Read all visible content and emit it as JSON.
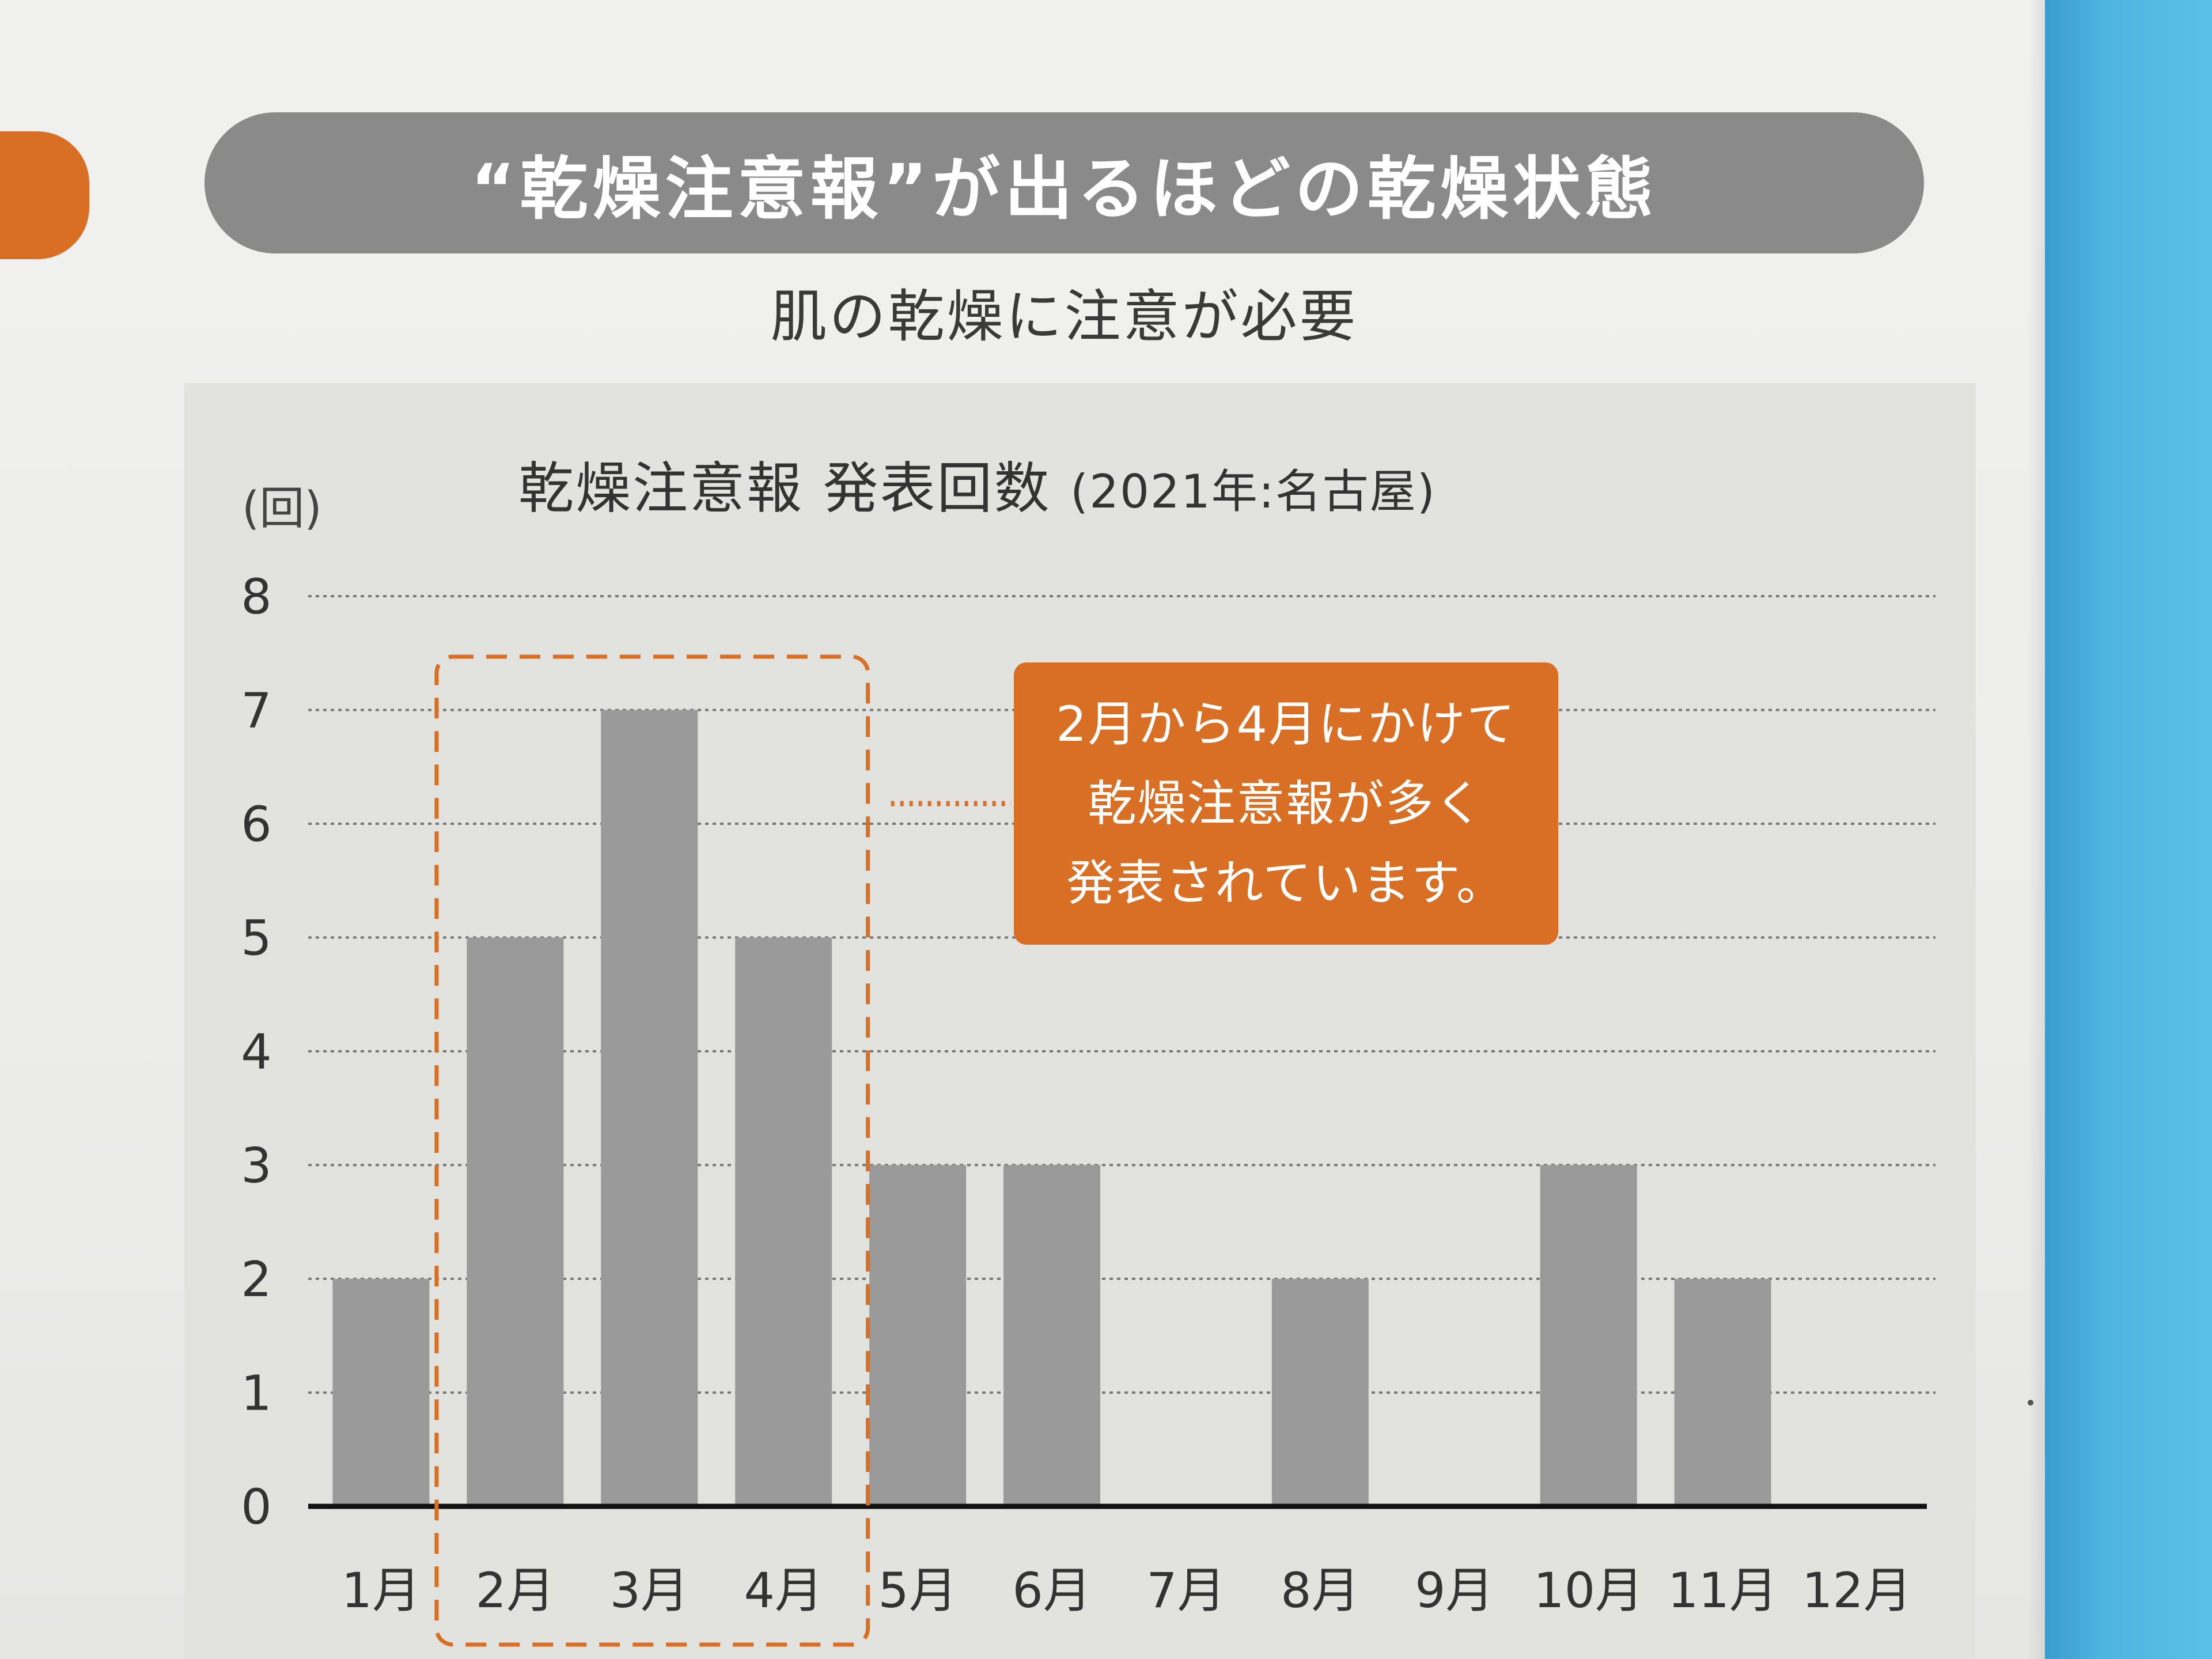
{
  "header": {
    "title": "“乾燥注意報”が出るほどの乾燥状態",
    "subtitle": "肌の乾燥に注意が必要"
  },
  "chart_data": {
    "type": "bar",
    "title": "乾燥注意報 発表回数",
    "subtitle": "(2021年:名古屋)",
    "ylabel": "(回)",
    "xlabel": "",
    "ylim": [
      0,
      8
    ],
    "yticks": [
      "0",
      "1",
      "2",
      "3",
      "4",
      "5",
      "6",
      "7",
      "8"
    ],
    "categories": [
      "1月",
      "2月",
      "3月",
      "4月",
      "5月",
      "6月",
      "7月",
      "8月",
      "9月",
      "10月",
      "11月",
      "12月"
    ],
    "values": [
      2,
      5,
      7,
      5,
      3,
      3,
      0,
      2,
      0,
      3,
      2,
      0
    ],
    "grid": true,
    "highlight": {
      "categories": [
        "2月",
        "3月",
        "4月"
      ]
    },
    "annotation": {
      "lines": [
        "2月から4月にかけて",
        "乾燥注意報が多く",
        "発表されています。"
      ]
    },
    "colors": {
      "bar": "#9a9a9a",
      "accent": "#d86f25",
      "axis": "#111111",
      "grid": "#777777"
    }
  }
}
